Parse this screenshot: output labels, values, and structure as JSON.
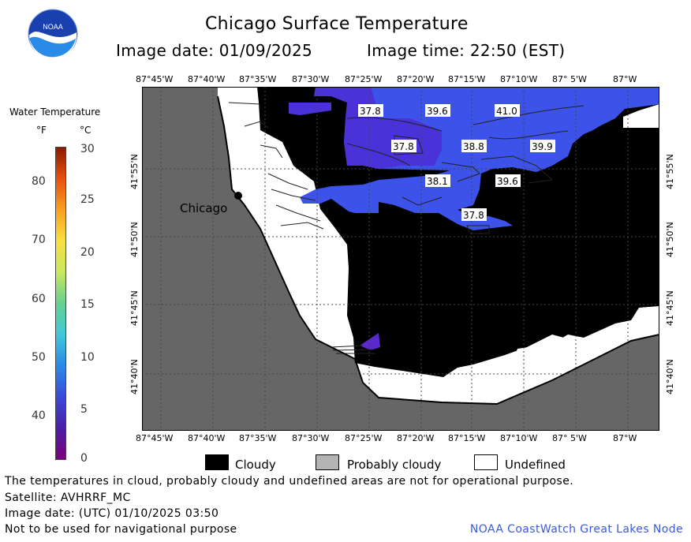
{
  "header": {
    "title": "Chicago Surface Temperature",
    "image_date": "Image date: 01/09/2025",
    "image_time": "Image time: 22:50 (EST)",
    "logo_text": "NOAA"
  },
  "legend": {
    "title": "Water Temperature",
    "unit_f": "°F",
    "unit_c": "°C",
    "f_ticks": [
      "80",
      "70",
      "60",
      "50",
      "40"
    ],
    "c_ticks": [
      "30",
      "25",
      "20",
      "15",
      "10",
      "5",
      "0"
    ]
  },
  "map": {
    "lon_labels": [
      "87°45'W",
      "87°40'W",
      "87°35'W",
      "87°30'W",
      "87°25'W",
      "87°20'W",
      "87°15'W",
      "87°10'W",
      "87° 5'W",
      "87°W"
    ],
    "lat_labels": [
      "41°55'N",
      "41°50'N",
      "41°45'N",
      "41°40'N"
    ],
    "city_label": "Chicago",
    "temperature_labels": [
      "37.8",
      "39.6",
      "41.0",
      "37.8",
      "38.8",
      "39.9",
      "38.1",
      "39.6",
      "37.8"
    ],
    "colors": {
      "land": "#666666",
      "cloudy": "#000000",
      "undefined": "#ffffff",
      "water_cold": "#4a32d8",
      "water_mid": "#3c52e8"
    }
  },
  "key": {
    "cloudy": "Cloudy",
    "probably_cloudy": "Probably cloudy",
    "undefined": "Undefined"
  },
  "footer": {
    "line1": "The temperatures in cloud, probably cloudy and undefined areas are not for operational purpose.",
    "line2": "Satellite: AVHRRF_MC",
    "line3": "Image date: (UTC) 01/10/2025  03:50",
    "line4": "Not to be used for navigational purpose",
    "credit": "NOAA CoastWatch Great Lakes Node"
  }
}
